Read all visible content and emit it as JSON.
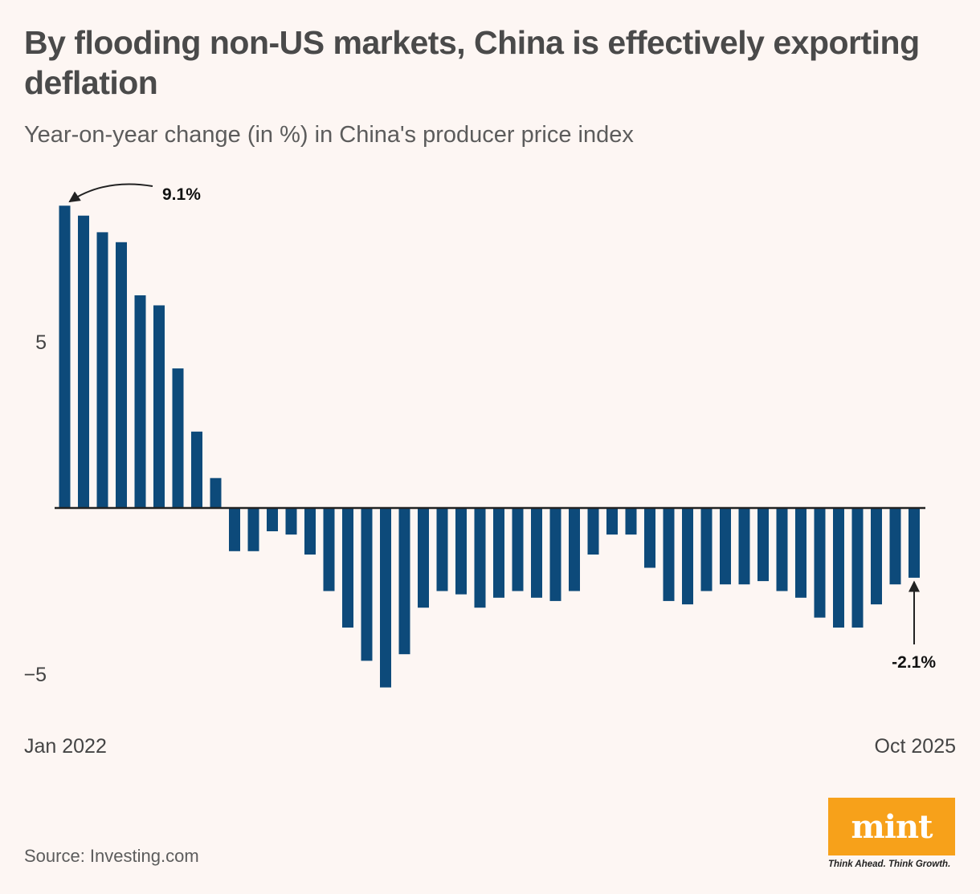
{
  "header": {
    "title": "By flooding non-US markets, China is effectively exporting deflation",
    "subtitle": "Year-on-year change (in %) in China's producer price index"
  },
  "footer": {
    "source": "Source: Investing.com",
    "logo_text": "mint",
    "tagline": "Think Ahead. Think Growth."
  },
  "colors": {
    "bar": "#0d4a7a",
    "background": "#fdf6f3",
    "axis": "#222222",
    "logo": "#f7a11a"
  },
  "chart_data": {
    "type": "bar",
    "title": "",
    "xlabel": "",
    "ylabel": "",
    "x_start_label": "Jan 2022",
    "x_end_label": "Oct 2025",
    "ylim": [
      -5.8,
      9.5
    ],
    "yticks": [
      5,
      -5
    ],
    "ytick_labels": [
      "5",
      "−5"
    ],
    "grid": false,
    "categories": [
      "Jan 2022",
      "Feb 2022",
      "Mar 2022",
      "Apr 2022",
      "May 2022",
      "Jun 2022",
      "Jul 2022",
      "Aug 2022",
      "Sep 2022",
      "Oct 2022",
      "Nov 2022",
      "Dec 2022",
      "Jan 2023",
      "Feb 2023",
      "Mar 2023",
      "Apr 2023",
      "May 2023",
      "Jun 2023",
      "Jul 2023",
      "Aug 2023",
      "Sep 2023",
      "Oct 2023",
      "Nov 2023",
      "Dec 2023",
      "Jan 2024",
      "Feb 2024",
      "Mar 2024",
      "Apr 2024",
      "May 2024",
      "Jun 2024",
      "Jul 2024",
      "Aug 2024",
      "Sep 2024",
      "Oct 2024",
      "Nov 2024",
      "Dec 2024",
      "Jan 2025",
      "Feb 2025",
      "Mar 2025",
      "Apr 2025",
      "May 2025",
      "Jun 2025",
      "Jul 2025",
      "Aug 2025",
      "Sep 2025",
      "Oct 2025"
    ],
    "values": [
      9.1,
      8.8,
      8.3,
      8.0,
      6.4,
      6.1,
      4.2,
      2.3,
      0.9,
      -1.3,
      -1.3,
      -0.7,
      -0.8,
      -1.4,
      -2.5,
      -3.6,
      -4.6,
      -5.4,
      -4.4,
      -3.0,
      -2.5,
      -2.6,
      -3.0,
      -2.7,
      -2.5,
      -2.7,
      -2.8,
      -2.5,
      -1.4,
      -0.8,
      -0.8,
      -1.8,
      -2.8,
      -2.9,
      -2.5,
      -2.3,
      -2.3,
      -2.2,
      -2.5,
      -2.7,
      -3.3,
      -3.6,
      -3.6,
      -2.9,
      -2.3,
      -2.1
    ],
    "annotations": [
      {
        "text": "9.1%",
        "index": 0
      },
      {
        "text": "-2.1%",
        "index": 45
      }
    ]
  }
}
